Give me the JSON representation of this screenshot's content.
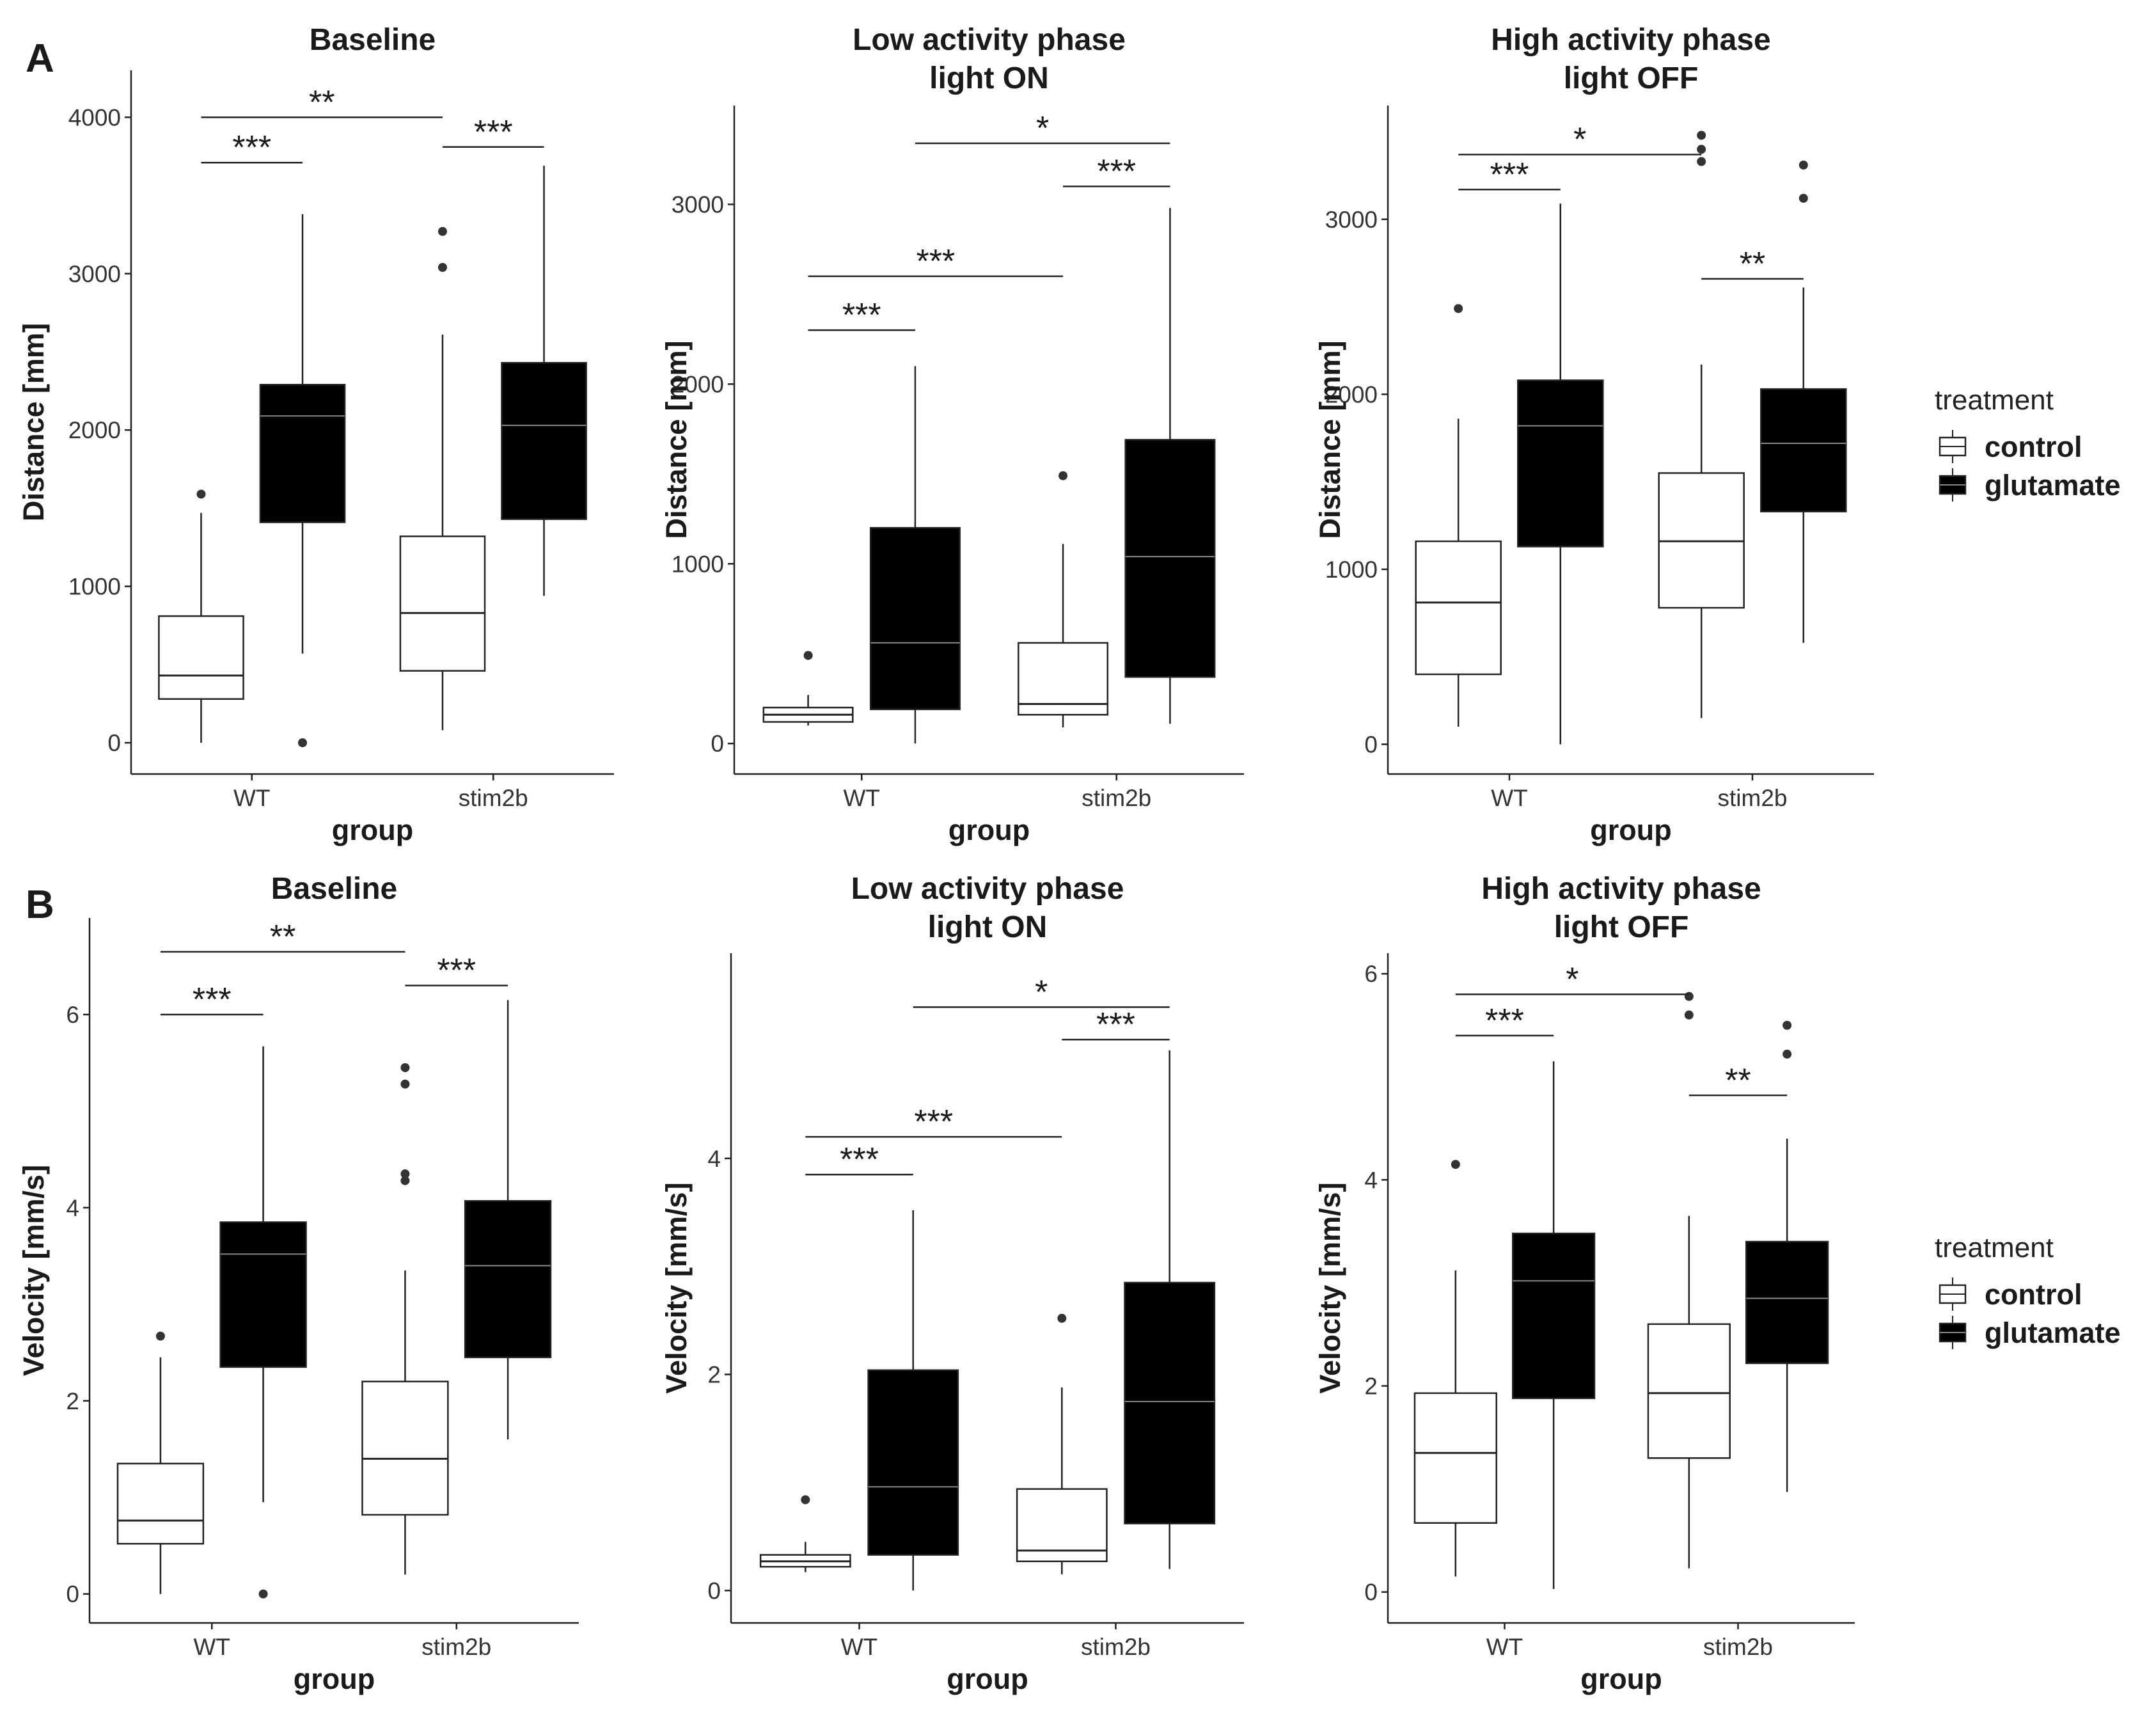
{
  "panel_labels": [
    "A",
    "B"
  ],
  "legend": {
    "title": "treatment",
    "items": [
      {
        "label": "control",
        "fill": "#ffffff"
      },
      {
        "label": "glutamate",
        "fill": "#000000"
      }
    ]
  },
  "colors": {
    "control_fill": "#ffffff",
    "glutamate_fill": "#000000",
    "median_on_black": "#888888",
    "axis": "#222222"
  },
  "chart_data": [
    {
      "type": "boxplot",
      "title_lines": [
        "Baseline"
      ],
      "ylabel": "Distance [mm]",
      "xlabel": "group",
      "categories": [
        "WT",
        "stim2b"
      ],
      "yticks": [
        0,
        1000,
        2000,
        3000,
        4000
      ],
      "ylim": [
        -200,
        4300
      ],
      "boxes": [
        {
          "group": "WT",
          "treatment": "control",
          "min": 0,
          "q1": 280,
          "median": 430,
          "q3": 810,
          "max": 1470,
          "outliers": [
            1590
          ]
        },
        {
          "group": "WT",
          "treatment": "glutamate",
          "min": 570,
          "q1": 1410,
          "median": 2090,
          "q3": 2290,
          "max": 3380,
          "outliers": [
            0
          ]
        },
        {
          "group": "stim2b",
          "treatment": "control",
          "min": 80,
          "q1": 460,
          "median": 830,
          "q3": 1320,
          "max": 2610,
          "outliers": [
            3040,
            3270
          ]
        },
        {
          "group": "stim2b",
          "treatment": "glutamate",
          "min": 940,
          "q1": 1430,
          "median": 2030,
          "q3": 2430,
          "max": 3690,
          "outliers": []
        }
      ],
      "annotations": [
        {
          "label": "**",
          "from": "WT:control",
          "to": "stim2b:control",
          "y": 4000
        },
        {
          "label": "***",
          "from": "WT:control",
          "to": "WT:glutamate",
          "y": 3710
        },
        {
          "label": "***",
          "from": "stim2b:control",
          "to": "stim2b:glutamate",
          "y": 3810
        }
      ]
    },
    {
      "type": "boxplot",
      "title_lines": [
        "Low activity phase",
        "light ON"
      ],
      "ylabel": "Distance [mm]",
      "xlabel": "group",
      "categories": [
        "WT",
        "stim2b"
      ],
      "yticks": [
        0,
        1000,
        2000,
        3000
      ],
      "ylim": [
        -170,
        3550
      ],
      "boxes": [
        {
          "group": "WT",
          "treatment": "control",
          "min": 100,
          "q1": 120,
          "median": 160,
          "q3": 200,
          "max": 270,
          "outliers": [
            490
          ]
        },
        {
          "group": "WT",
          "treatment": "glutamate",
          "min": 0,
          "q1": 190,
          "median": 560,
          "q3": 1200,
          "max": 2100,
          "outliers": []
        },
        {
          "group": "stim2b",
          "treatment": "control",
          "min": 90,
          "q1": 160,
          "median": 220,
          "q3": 560,
          "max": 1110,
          "outliers": [
            1490
          ]
        },
        {
          "group": "stim2b",
          "treatment": "glutamate",
          "min": 110,
          "q1": 370,
          "median": 1040,
          "q3": 1690,
          "max": 2980,
          "outliers": []
        }
      ],
      "annotations": [
        {
          "label": "*",
          "from": "WT:glutamate",
          "to": "stim2b:glutamate",
          "y": 3340
        },
        {
          "label": "***",
          "from": "stim2b:control",
          "to": "stim2b:glutamate",
          "y": 3100
        },
        {
          "label": "***",
          "from": "WT:control",
          "to": "stim2b:control",
          "y": 2600
        },
        {
          "label": "***",
          "from": "WT:control",
          "to": "WT:glutamate",
          "y": 2300
        }
      ]
    },
    {
      "type": "boxplot",
      "title_lines": [
        "High activity phase",
        "light OFF"
      ],
      "ylabel": "Distance [mm]",
      "xlabel": "group",
      "categories": [
        "WT",
        "stim2b"
      ],
      "yticks": [
        0,
        1000,
        2000,
        3000
      ],
      "ylim": [
        -170,
        3650
      ],
      "boxes": [
        {
          "group": "WT",
          "treatment": "control",
          "min": 100,
          "q1": 400,
          "median": 810,
          "q3": 1160,
          "max": 1860,
          "outliers": [
            2490
          ]
        },
        {
          "group": "WT",
          "treatment": "glutamate",
          "min": 0,
          "q1": 1130,
          "median": 1820,
          "q3": 2080,
          "max": 3090,
          "outliers": []
        },
        {
          "group": "stim2b",
          "treatment": "control",
          "min": 150,
          "q1": 780,
          "median": 1160,
          "q3": 1550,
          "max": 2170,
          "outliers": [
            3330,
            3400,
            3480
          ]
        },
        {
          "group": "stim2b",
          "treatment": "glutamate",
          "min": 580,
          "q1": 1330,
          "median": 1720,
          "q3": 2030,
          "max": 2610,
          "outliers": [
            3120,
            3310
          ]
        }
      ],
      "annotations": [
        {
          "label": "*",
          "from": "WT:control",
          "to": "stim2b:control",
          "y": 3370
        },
        {
          "label": "***",
          "from": "WT:control",
          "to": "WT:glutamate",
          "y": 3170
        },
        {
          "label": "**",
          "from": "stim2b:control",
          "to": "stim2b:glutamate",
          "y": 2660
        }
      ]
    },
    {
      "type": "boxplot",
      "title_lines": [
        "Baseline"
      ],
      "ylabel": "Velocity [mm/s]",
      "xlabel": "group",
      "categories": [
        "WT",
        "stim2b"
      ],
      "yticks": [
        0,
        2,
        4,
        6
      ],
      "ylim": [
        -0.3,
        7.0
      ],
      "boxes": [
        {
          "group": "WT",
          "treatment": "control",
          "min": 0,
          "q1": 0.52,
          "median": 0.76,
          "q3": 1.35,
          "max": 2.45,
          "outliers": [
            2.67
          ]
        },
        {
          "group": "WT",
          "treatment": "glutamate",
          "min": 0.95,
          "q1": 2.35,
          "median": 3.52,
          "q3": 3.85,
          "max": 5.67,
          "outliers": [
            0
          ]
        },
        {
          "group": "stim2b",
          "treatment": "control",
          "min": 0.2,
          "q1": 0.82,
          "median": 1.4,
          "q3": 2.2,
          "max": 3.35,
          "outliers": [
            4.28,
            4.35,
            5.28,
            5.45
          ]
        },
        {
          "group": "stim2b",
          "treatment": "glutamate",
          "min": 1.6,
          "q1": 2.45,
          "median": 3.4,
          "q3": 4.07,
          "max": 6.15,
          "outliers": []
        }
      ],
      "annotations": [
        {
          "label": "**",
          "from": "WT:control",
          "to": "stim2b:control",
          "y": 6.65
        },
        {
          "label": "***",
          "from": "WT:control",
          "to": "WT:glutamate",
          "y": 6.0
        },
        {
          "label": "***",
          "from": "stim2b:control",
          "to": "stim2b:glutamate",
          "y": 6.3
        }
      ]
    },
    {
      "type": "boxplot",
      "title_lines": [
        "Low activity phase",
        "light ON"
      ],
      "ylabel": "Velocity [mm/s]",
      "xlabel": "group",
      "categories": [
        "WT",
        "stim2b"
      ],
      "yticks": [
        0,
        2,
        4
      ],
      "ylim": [
        -0.3,
        5.9
      ],
      "boxes": [
        {
          "group": "WT",
          "treatment": "control",
          "min": 0.17,
          "q1": 0.22,
          "median": 0.27,
          "q3": 0.33,
          "max": 0.45,
          "outliers": [
            0.84
          ]
        },
        {
          "group": "WT",
          "treatment": "glutamate",
          "min": 0,
          "q1": 0.33,
          "median": 0.96,
          "q3": 2.04,
          "max": 3.52,
          "outliers": []
        },
        {
          "group": "stim2b",
          "treatment": "control",
          "min": 0.15,
          "q1": 0.27,
          "median": 0.37,
          "q3": 0.94,
          "max": 1.88,
          "outliers": [
            2.52
          ]
        },
        {
          "group": "stim2b",
          "treatment": "glutamate",
          "min": 0.2,
          "q1": 0.62,
          "median": 1.75,
          "q3": 2.85,
          "max": 5.0,
          "outliers": []
        }
      ],
      "annotations": [
        {
          "label": "*",
          "from": "WT:glutamate",
          "to": "stim2b:glutamate",
          "y": 5.4
        },
        {
          "label": "***",
          "from": "stim2b:control",
          "to": "stim2b:glutamate",
          "y": 5.1
        },
        {
          "label": "***",
          "from": "WT:control",
          "to": "stim2b:control",
          "y": 4.2
        },
        {
          "label": "***",
          "from": "WT:control",
          "to": "WT:glutamate",
          "y": 3.85
        }
      ]
    },
    {
      "type": "boxplot",
      "title_lines": [
        "High activity phase",
        "light OFF"
      ],
      "ylabel": "Velocity [mm/s]",
      "xlabel": "group",
      "categories": [
        "WT",
        "stim2b"
      ],
      "yticks": [
        0,
        2,
        4,
        6
      ],
      "ylim": [
        -0.3,
        6.2
      ],
      "boxes": [
        {
          "group": "WT",
          "treatment": "control",
          "min": 0.15,
          "q1": 0.67,
          "median": 1.35,
          "q3": 1.93,
          "max": 3.12,
          "outliers": [
            4.15
          ]
        },
        {
          "group": "WT",
          "treatment": "glutamate",
          "min": 0.03,
          "q1": 1.88,
          "median": 3.02,
          "q3": 3.48,
          "max": 5.15,
          "outliers": []
        },
        {
          "group": "stim2b",
          "treatment": "control",
          "min": 0.23,
          "q1": 1.3,
          "median": 1.93,
          "q3": 2.6,
          "max": 3.65,
          "outliers": [
            5.6,
            5.78
          ]
        },
        {
          "group": "stim2b",
          "treatment": "glutamate",
          "min": 0.97,
          "q1": 2.22,
          "median": 2.85,
          "q3": 3.4,
          "max": 4.4,
          "outliers": [
            5.22,
            5.5
          ]
        }
      ],
      "annotations": [
        {
          "label": "*",
          "from": "WT:control",
          "to": "stim2b:control",
          "y": 5.8
        },
        {
          "label": "***",
          "from": "WT:control",
          "to": "WT:glutamate",
          "y": 5.4
        },
        {
          "label": "**",
          "from": "stim2b:control",
          "to": "stim2b:glutamate",
          "y": 4.82
        }
      ]
    }
  ]
}
